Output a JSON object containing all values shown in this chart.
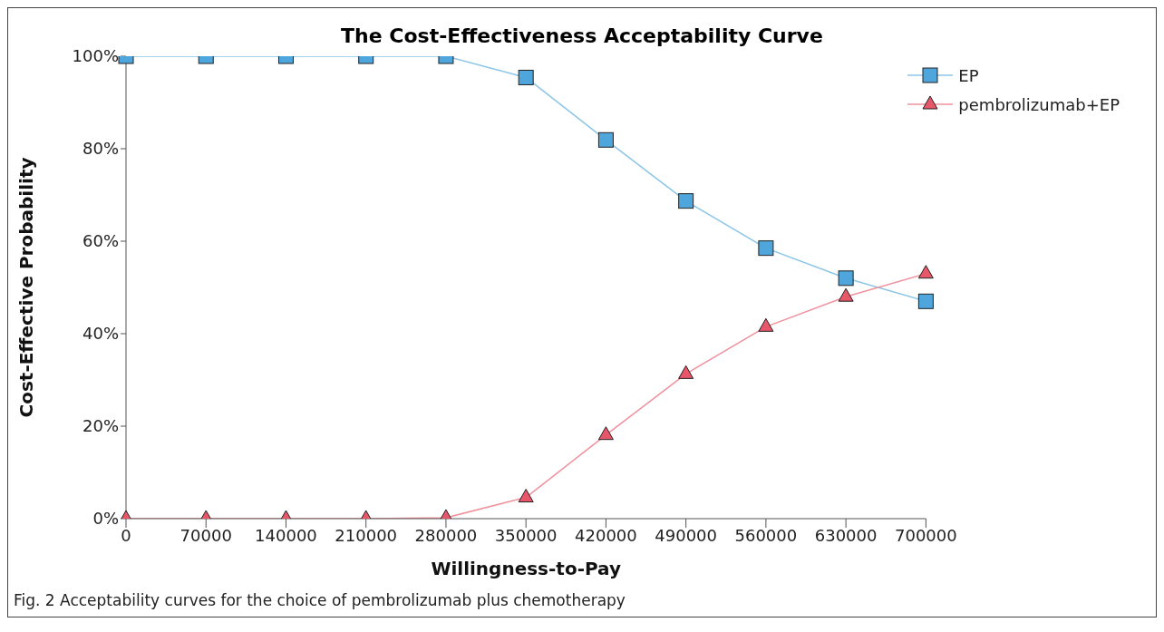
{
  "chart_data": {
    "type": "line",
    "title": "The Cost-Effectiveness Acceptability Curve",
    "xlabel": "Willingness-to-Pay",
    "ylabel": "Cost-Effective Probability",
    "categories": [
      "0",
      "70000",
      "140000",
      "210000",
      "280000",
      "350000",
      "420000",
      "490000",
      "560000",
      "630000",
      "700000"
    ],
    "series": [
      {
        "name": "EP",
        "color": "#4ea6dc",
        "marker": "square",
        "values": [
          100,
          100,
          100,
          100,
          100,
          95.4,
          81.9,
          68.7,
          58.5,
          52,
          47
        ]
      },
      {
        "name": "pembrolizumab+EP",
        "color": "#e8566a",
        "marker": "triangle",
        "values": [
          0,
          0,
          0,
          0,
          0.2,
          4.6,
          18.1,
          31.3,
          41.5,
          48,
          53
        ]
      }
    ],
    "ylim": [
      0,
      100
    ],
    "yticks": [
      {
        "value": 0,
        "label": "0%"
      },
      {
        "value": 20,
        "label": "20%"
      },
      {
        "value": 40,
        "label": "40%"
      },
      {
        "value": 60,
        "label": "60%"
      },
      {
        "value": 80,
        "label": "80%"
      },
      {
        "value": 100,
        "label": "100%"
      }
    ],
    "grid": false,
    "legend": "top right",
    "line_style": "solid",
    "annotations": [
      "Fig. 2  Acceptability curves for the choice of pembrolizumab plus chemotherapy"
    ]
  }
}
